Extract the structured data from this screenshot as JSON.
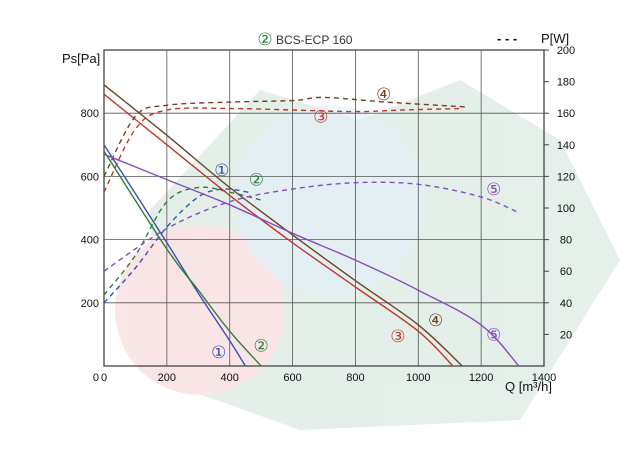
{
  "chart_data": {
    "type": "line",
    "title": "BCS-ECP 160",
    "title_marker": "②",
    "xlabel": "Q [m³/h]",
    "ylabel": "Ps[Pa]",
    "y2label": "P[W]",
    "y2_legend_symbol": "- - -",
    "xlim": [
      0,
      1400
    ],
    "ylim": [
      0,
      1000
    ],
    "y2lim": [
      0,
      200
    ],
    "x_ticks": [
      0,
      200,
      400,
      600,
      800,
      1000,
      1200,
      1400
    ],
    "y_ticks": [
      200,
      400,
      600,
      800
    ],
    "y2_ticks": [
      20,
      40,
      60,
      80,
      100,
      120,
      140,
      160,
      180,
      200
    ],
    "grid": true,
    "series": [
      {
        "name": "①",
        "color": "#3a4fb8",
        "pressure": [
          [
            0,
            700
          ],
          [
            200,
            390
          ],
          [
            300,
            230
          ],
          [
            400,
            80
          ],
          [
            450,
            0
          ]
        ],
        "power": [
          [
            0,
            40
          ],
          [
            100,
            62
          ],
          [
            200,
            88
          ],
          [
            300,
            107
          ],
          [
            380,
            112
          ],
          [
            460,
            110
          ]
        ],
        "pressure_label": [
          365,
          45
        ],
        "power_label": [
          375,
          620
        ]
      },
      {
        "name": "②",
        "color": "#2e7d3e",
        "pressure": [
          [
            0,
            680
          ],
          [
            200,
            370
          ],
          [
            300,
            240
          ],
          [
            400,
            110
          ],
          [
            500,
            0
          ]
        ],
        "power": [
          [
            0,
            45
          ],
          [
            100,
            70
          ],
          [
            200,
            104
          ],
          [
            300,
            113
          ],
          [
            400,
            110
          ],
          [
            500,
            105
          ]
        ],
        "pressure_label": [
          500,
          65
        ],
        "power_label": [
          485,
          590
        ]
      },
      {
        "name": "③",
        "color": "#c0392b",
        "pressure": [
          [
            0,
            860
          ],
          [
            200,
            700
          ],
          [
            400,
            540
          ],
          [
            600,
            390
          ],
          [
            800,
            250
          ],
          [
            1000,
            110
          ],
          [
            1110,
            0
          ]
        ],
        "power": [
          [
            0,
            110
          ],
          [
            100,
            150
          ],
          [
            200,
            162
          ],
          [
            400,
            163
          ],
          [
            600,
            162
          ],
          [
            800,
            161
          ],
          [
            950,
            162
          ],
          [
            1140,
            163
          ]
        ],
        "pressure_label": [
          935,
          95
        ],
        "power_label": [
          690,
          790
        ]
      },
      {
        "name": "④",
        "color": "#6b4423",
        "pressure": [
          [
            0,
            890
          ],
          [
            200,
            730
          ],
          [
            400,
            565
          ],
          [
            600,
            415
          ],
          [
            800,
            270
          ],
          [
            1000,
            130
          ],
          [
            1140,
            0
          ]
        ],
        "power": [
          [
            0,
            120
          ],
          [
            100,
            158
          ],
          [
            200,
            165
          ],
          [
            400,
            167
          ],
          [
            600,
            168
          ],
          [
            700,
            170
          ],
          [
            900,
            167
          ],
          [
            1150,
            164
          ]
        ],
        "pressure_label": [
          1055,
          145
        ],
        "power_label": [
          890,
          860
        ]
      },
      {
        "name": "⑤",
        "color": "#8a4bbf",
        "pressure": [
          [
            0,
            670
          ],
          [
            200,
            590
          ],
          [
            400,
            510
          ],
          [
            600,
            420
          ],
          [
            800,
            335
          ],
          [
            1000,
            240
          ],
          [
            1200,
            130
          ],
          [
            1320,
            0
          ]
        ],
        "power": [
          [
            0,
            60
          ],
          [
            200,
            87
          ],
          [
            400,
            104
          ],
          [
            600,
            112
          ],
          [
            800,
            116
          ],
          [
            1000,
            115
          ],
          [
            1200,
            107
          ],
          [
            1320,
            97
          ]
        ],
        "pressure_label": [
          1240,
          100
        ],
        "power_label": [
          1240,
          560
        ]
      }
    ]
  }
}
